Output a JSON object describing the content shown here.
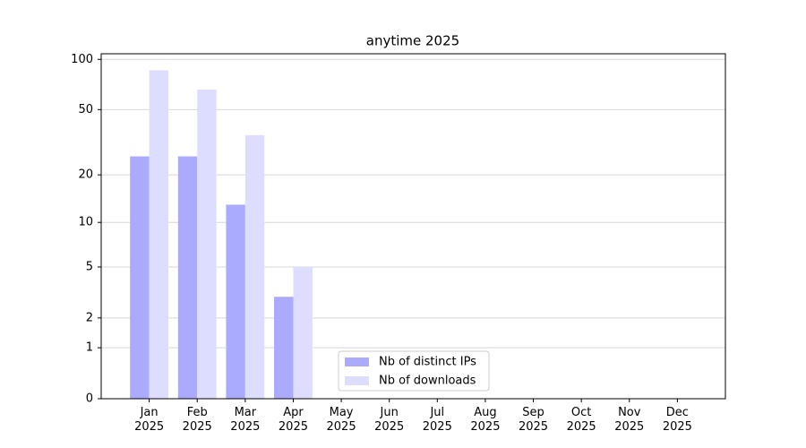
{
  "chart_data": {
    "type": "bar",
    "title": "anytime 2025",
    "categories": [
      "Jan\n2025",
      "Feb\n2025",
      "Mar\n2025",
      "Apr\n2025",
      "May\n2025",
      "Jun\n2025",
      "Jul\n2025",
      "Aug\n2025",
      "Sep\n2025",
      "Oct\n2025",
      "Nov\n2025",
      "Dec\n2025"
    ],
    "series": [
      {
        "name": "Nb of distinct IPs",
        "color": "#aaaaff",
        "values": [
          26,
          26,
          13,
          3,
          null,
          null,
          null,
          null,
          null,
          null,
          null,
          null
        ]
      },
      {
        "name": "Nb of downloads",
        "color": "#ddddff",
        "values": [
          86,
          66,
          35,
          5,
          null,
          null,
          null,
          null,
          null,
          null,
          null,
          null
        ]
      }
    ],
    "yscale": "log1p",
    "ylim": [
      0,
      108
    ],
    "yticks": [
      0,
      1,
      2,
      5,
      10,
      20,
      50,
      100
    ],
    "grid": true,
    "legend": "lower center"
  }
}
